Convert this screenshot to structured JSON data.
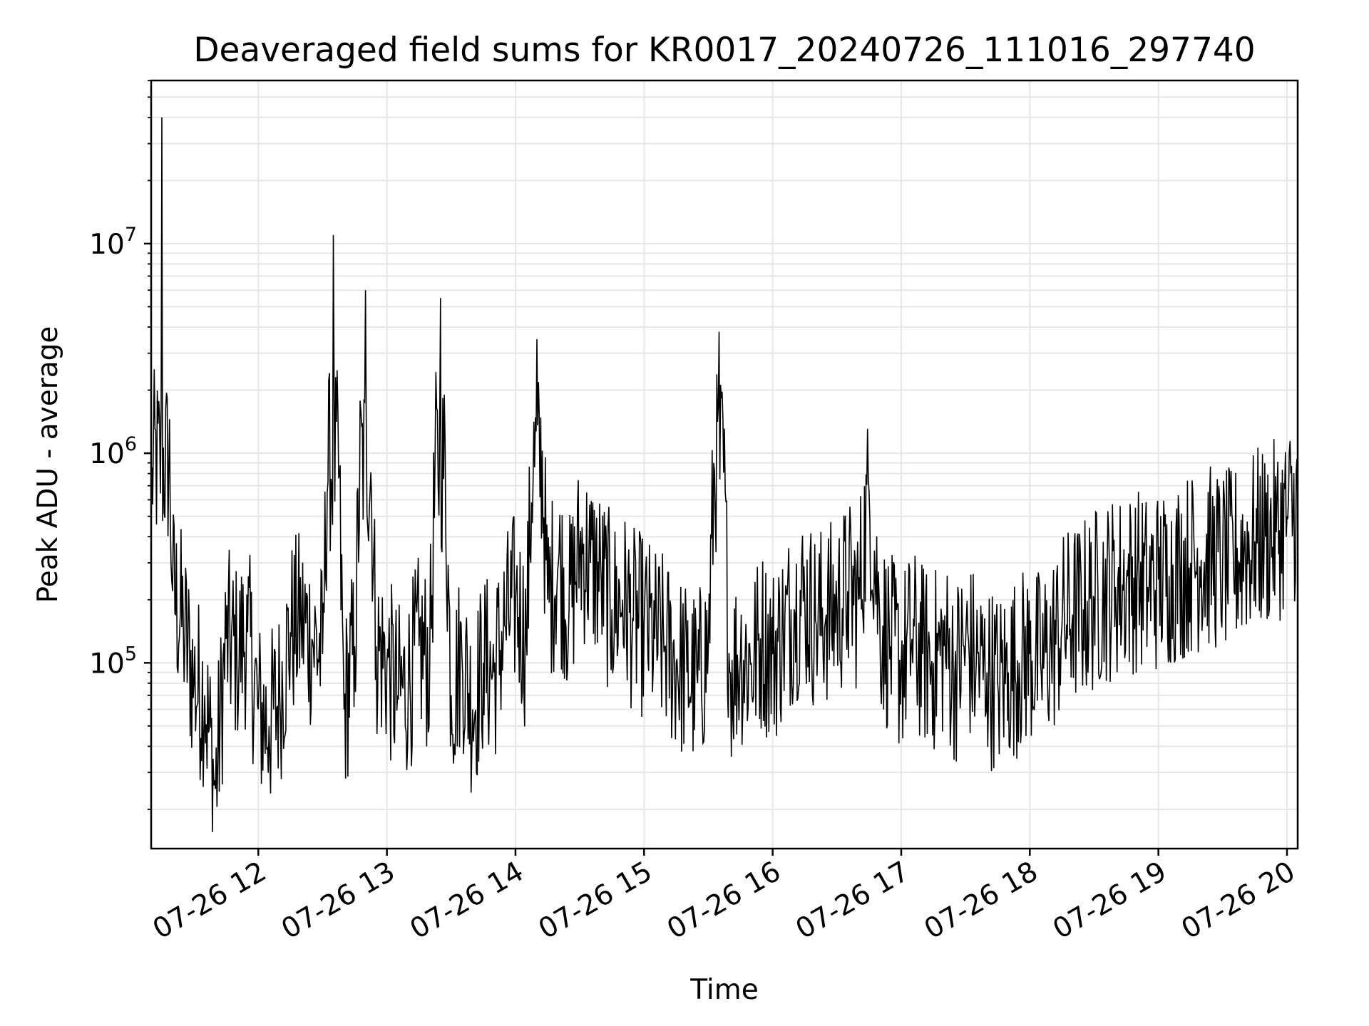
{
  "chart_data": {
    "type": "line",
    "title": "Deaveraged field sums for KR0017_20240726_111016_297740",
    "xlabel": "Time",
    "ylabel": "Peak ADU - average",
    "yscale": "log",
    "xlim": [
      "07-26 11:10",
      "07-26 20:05"
    ],
    "ylim": [
      13000,
      60000000
    ],
    "grid": true,
    "line_color": "#000000",
    "grid_color": "#e6e6e6",
    "x_ticks": [
      {
        "label": "07-26 12",
        "hour": 12
      },
      {
        "label": "07-26 13",
        "hour": 13
      },
      {
        "label": "07-26 14",
        "hour": 14
      },
      {
        "label": "07-26 15",
        "hour": 15
      },
      {
        "label": "07-26 16",
        "hour": 16
      },
      {
        "label": "07-26 17",
        "hour": 17
      },
      {
        "label": "07-26 18",
        "hour": 18
      },
      {
        "label": "07-26 19",
        "hour": 19
      },
      {
        "label": "07-26 20",
        "hour": 20
      }
    ],
    "y_ticks": [
      {
        "base": "10",
        "exp": "5",
        "value": 100000
      },
      {
        "base": "10",
        "exp": "6",
        "value": 1000000
      },
      {
        "base": "10",
        "exp": "7",
        "value": 10000000
      }
    ],
    "series": [
      {
        "x": [
          "07-26 11:10",
          "07-26 11:15",
          "07-26 11:20",
          "07-26 11:25",
          "07-26 11:30",
          "07-26 11:35",
          "07-26 11:40",
          "07-26 11:45",
          "07-26 11:50",
          "07-26 11:55",
          "07-26 12:00",
          "07-26 12:05",
          "07-26 12:10",
          "07-26 12:15",
          "07-26 12:20",
          "07-26 12:25",
          "07-26 12:30",
          "07-26 12:35",
          "07-26 12:40",
          "07-26 12:45",
          "07-26 12:50",
          "07-26 12:55",
          "07-26 13:00",
          "07-26 13:05",
          "07-26 13:10",
          "07-26 13:15",
          "07-26 13:20",
          "07-26 13:25",
          "07-26 13:30",
          "07-26 13:35",
          "07-26 13:40",
          "07-26 13:45",
          "07-26 13:50",
          "07-26 13:55",
          "07-26 14:00",
          "07-26 14:05",
          "07-26 14:10",
          "07-26 14:15",
          "07-26 14:20",
          "07-26 14:25",
          "07-26 14:30",
          "07-26 14:35",
          "07-26 14:40",
          "07-26 14:45",
          "07-26 14:50",
          "07-26 14:55",
          "07-26 15:00",
          "07-26 15:05",
          "07-26 15:10",
          "07-26 15:15",
          "07-26 15:20",
          "07-26 15:25",
          "07-26 15:30",
          "07-26 15:35",
          "07-26 15:40",
          "07-26 15:45",
          "07-26 15:50",
          "07-26 15:55",
          "07-26 16:00",
          "07-26 16:05",
          "07-26 16:10",
          "07-26 16:15",
          "07-26 16:20",
          "07-26 16:25",
          "07-26 16:30",
          "07-26 16:35",
          "07-26 16:40",
          "07-26 16:45",
          "07-26 16:50",
          "07-26 16:55",
          "07-26 17:00",
          "07-26 17:05",
          "07-26 17:10",
          "07-26 17:15",
          "07-26 17:20",
          "07-26 17:25",
          "07-26 17:30",
          "07-26 17:35",
          "07-26 17:40",
          "07-26 17:45",
          "07-26 17:50",
          "07-26 17:55",
          "07-26 18:00",
          "07-26 18:05",
          "07-26 18:10",
          "07-26 18:15",
          "07-26 18:20",
          "07-26 18:25",
          "07-26 18:30",
          "07-26 18:35",
          "07-26 18:40",
          "07-26 18:45",
          "07-26 18:50",
          "07-26 18:55",
          "07-26 19:00",
          "07-26 19:05",
          "07-26 19:10",
          "07-26 19:15",
          "07-26 19:20",
          "07-26 19:25",
          "07-26 19:30",
          "07-26 19:35",
          "07-26 19:40",
          "07-26 19:45",
          "07-26 19:50",
          "07-26 19:55",
          "07-26 20:00",
          "07-26 20:05"
        ],
        "y": [
          450000,
          40000000,
          220000,
          150000,
          80000,
          70000,
          25000,
          130000,
          110000,
          140000,
          60000,
          50000,
          70000,
          140000,
          160000,
          130000,
          110000,
          11000000,
          60000,
          120000,
          6000000,
          120000,
          100000,
          70000,
          80000,
          120000,
          100000,
          5500000,
          70000,
          110000,
          60000,
          100000,
          90000,
          150000,
          200000,
          130000,
          3500000,
          200000,
          300000,
          180000,
          350000,
          300000,
          250000,
          180000,
          200000,
          160000,
          150000,
          130000,
          120000,
          100000,
          90000,
          80000,
          120000,
          3800000,
          90000,
          110000,
          100000,
          130000,
          110000,
          140000,
          180000,
          200000,
          160000,
          170000,
          180000,
          220000,
          200000,
          650000,
          160000,
          120000,
          100000,
          130000,
          110000,
          100000,
          120000,
          90000,
          120000,
          100000,
          90000,
          80000,
          90000,
          100000,
          110000,
          100000,
          120000,
          150000,
          170000,
          180000,
          200000,
          220000,
          230000,
          240000,
          250000,
          230000,
          250000,
          260000,
          280000,
          300000,
          310000,
          320000,
          300000,
          310000,
          350000,
          380000,
          400000,
          420000,
          500000,
          550000
        ]
      }
    ]
  }
}
